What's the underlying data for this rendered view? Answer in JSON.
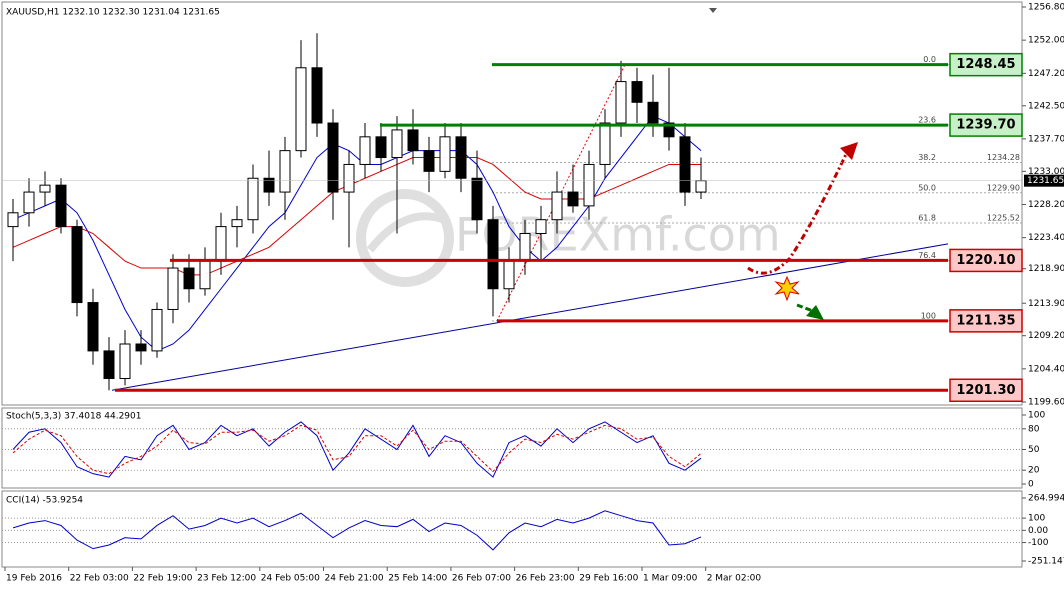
{
  "chart_data": [
    {
      "type": "candlestick",
      "title": "XAUUSD,H1  1232.10 1232.30 1231.04 1231.65",
      "watermark": "FOREXmf.com",
      "open": [
        1225,
        1227,
        1230,
        1231,
        1225,
        1214,
        1207,
        1203,
        1208,
        1207,
        1213,
        1219,
        1216,
        1220,
        1225,
        1226,
        1232,
        1230,
        1236,
        1248,
        1240,
        1230,
        1234,
        1238,
        1235,
        1239,
        1236,
        1233,
        1238,
        1232,
        1226,
        1216,
        1220,
        1224,
        1226,
        1230,
        1228,
        1234,
        1240,
        1246,
        1243,
        1240,
        1238,
        1230
      ],
      "high": [
        1229,
        1232,
        1233,
        1232,
        1226,
        1216,
        1209,
        1210,
        1210,
        1214,
        1221,
        1221,
        1222,
        1227,
        1228,
        1234,
        1236,
        1238,
        1252,
        1253,
        1242,
        1236,
        1240,
        1240,
        1241,
        1242,
        1238,
        1240,
        1240,
        1236,
        1228,
        1222,
        1226,
        1228,
        1233,
        1234,
        1236,
        1242,
        1249,
        1248,
        1247,
        1248,
        1240,
        1235
      ],
      "low": [
        1220,
        1225,
        1228,
        1224,
        1212,
        1205,
        1201.3,
        1202,
        1205,
        1206,
        1211,
        1214,
        1215,
        1218,
        1222,
        1224,
        1228,
        1226,
        1235,
        1238,
        1226,
        1222,
        1232,
        1233,
        1224,
        1234,
        1230,
        1232,
        1230,
        1224,
        1212,
        1214,
        1218,
        1220,
        1224,
        1227,
        1226,
        1232,
        1238,
        1240,
        1238,
        1236,
        1228,
        1229
      ],
      "close": [
        1227,
        1230,
        1231,
        1225,
        1214,
        1207,
        1203,
        1208,
        1207,
        1213,
        1219,
        1216,
        1220,
        1225,
        1226,
        1232,
        1230,
        1236,
        1248,
        1240,
        1230,
        1234,
        1238,
        1235,
        1239,
        1236,
        1233,
        1238,
        1232,
        1226,
        1216,
        1220,
        1224,
        1226,
        1230,
        1228,
        1234,
        1240,
        1246,
        1243,
        1240,
        1238,
        1230,
        1231.65
      ],
      "moving_averages": [
        {
          "color": "#0000cc",
          "values": [
            1226,
            1227,
            1228,
            1229,
            1227,
            1223,
            1218,
            1213,
            1209,
            1207,
            1208,
            1210,
            1213,
            1216,
            1219,
            1222,
            1225,
            1227,
            1231,
            1235,
            1237,
            1236,
            1234,
            1234,
            1235,
            1236,
            1236,
            1236,
            1236,
            1234,
            1230,
            1225,
            1222,
            1220,
            1222,
            1225,
            1228,
            1232,
            1235,
            1238,
            1241,
            1240,
            1238,
            1236
          ]
        },
        {
          "color": "#dd0000",
          "values": [
            1222,
            1223,
            1224,
            1225,
            1225,
            1224,
            1222,
            1220,
            1219,
            1219,
            1219,
            1218,
            1218,
            1219,
            1220,
            1221,
            1222,
            1224,
            1226,
            1228,
            1230,
            1231,
            1232,
            1233,
            1234,
            1235,
            1235,
            1235,
            1235,
            1235,
            1234,
            1232,
            1230,
            1229,
            1229,
            1229,
            1229,
            1230,
            1231,
            1232,
            1233,
            1234,
            1234,
            1234
          ]
        }
      ],
      "ylim": [
        1199.6,
        1256.8
      ],
      "yticks": [
        {
          "value": 1256.8,
          "label": "1256.80"
        },
        {
          "value": 1252,
          "label": "1252.00"
        },
        {
          "value": 1247.2,
          "label": "1247.20"
        },
        {
          "value": 1242.5,
          "label": "1242.50"
        },
        {
          "value": 1237.7,
          "label": "1237.70"
        },
        {
          "value": 1233,
          "label": "1233.00"
        },
        {
          "value": 1228.2,
          "label": "1228.20"
        },
        {
          "value": 1223.4,
          "label": "1223.40"
        },
        {
          "value": 1218.9,
          "label": "1218.90"
        },
        {
          "value": 1213.9,
          "label": "1213.90"
        },
        {
          "value": 1209.2,
          "label": "1209.20"
        },
        {
          "value": 1204.4,
          "label": "1204.40"
        },
        {
          "value": 1199.6,
          "label": "1199.60"
        }
      ],
      "current_price": 1231.65,
      "levels": [
        {
          "value": 1248.45,
          "label": "1248.45",
          "color": "#008000",
          "box_color": "#c8f0c8"
        },
        {
          "value": 1239.7,
          "label": "1239.70",
          "color": "#008000",
          "box_color": "#c8f0c8"
        },
        {
          "value": 1220.1,
          "label": "1220.10",
          "color": "#cc0000",
          "box_color": "#ffc8c8"
        },
        {
          "value": 1211.35,
          "label": "1211.35",
          "color": "#cc0000",
          "box_color": "#ffc8c8"
        },
        {
          "value": 1201.3,
          "label": "1201.30",
          "color": "#cc0000",
          "box_color": "#ffc8c8"
        }
      ],
      "fib": [
        {
          "label": "0.0",
          "value": 1248.45
        },
        {
          "label": "23.6",
          "value": 1239.7
        },
        {
          "label": "38.2",
          "value": 1234.28,
          "value_label": "1234.28"
        },
        {
          "label": "50.0",
          "value": 1229.9,
          "value_label": "1229.90"
        },
        {
          "label": "61.8",
          "value": 1225.52,
          "value_label": "1225.52"
        },
        {
          "label": "76.4",
          "value": 1220.1
        },
        {
          "label": "100",
          "value": 1211.35
        }
      ],
      "trendline": [
        1201.3,
        1222.5
      ],
      "time_labels": [
        "19 Feb 2016",
        "22 Feb 03:00",
        "22 Feb 19:00",
        "23 Feb 12:00",
        "24 Feb 05:00",
        "24 Feb 21:00",
        "25 Feb 14:00",
        "26 Feb 07:00",
        "26 Feb 23:00",
        "29 Feb 16:00",
        "1 Mar 09:00",
        "2 Mar 02:00"
      ]
    },
    {
      "type": "line",
      "title": "Stoch(5,3,3) 37.4018 44.2901",
      "series": [
        {
          "color": "#0000cc",
          "dash": false,
          "values": [
            50,
            75,
            80,
            60,
            25,
            15,
            10,
            40,
            35,
            70,
            85,
            50,
            60,
            85,
            70,
            80,
            55,
            75,
            90,
            70,
            20,
            45,
            80,
            65,
            50,
            85,
            40,
            70,
            60,
            30,
            10,
            60,
            70,
            55,
            80,
            60,
            80,
            90,
            75,
            60,
            70,
            30,
            20,
            37.4018
          ]
        },
        {
          "color": "#dd0000",
          "dash": true,
          "values": [
            45,
            65,
            78,
            70,
            40,
            20,
            15,
            30,
            40,
            55,
            78,
            60,
            58,
            75,
            75,
            78,
            62,
            70,
            85,
            78,
            35,
            40,
            70,
            70,
            55,
            78,
            50,
            62,
            62,
            40,
            18,
            45,
            65,
            60,
            72,
            65,
            75,
            85,
            80,
            65,
            68,
            40,
            25,
            44.2901
          ]
        }
      ],
      "ylim": [
        0,
        100
      ],
      "yticks": [
        100,
        80,
        50,
        20,
        0
      ]
    },
    {
      "type": "line",
      "title": "CCI(14) -53.9254",
      "series": [
        {
          "color": "#0000cc",
          "dash": false,
          "values": [
            20,
            60,
            80,
            40,
            -80,
            -150,
            -120,
            -60,
            -70,
            40,
            120,
            10,
            40,
            100,
            60,
            100,
            30,
            80,
            140,
            40,
            -60,
            20,
            80,
            40,
            30,
            90,
            -10,
            60,
            40,
            -40,
            -160,
            -20,
            60,
            30,
            90,
            60,
            100,
            160,
            120,
            80,
            60,
            -120,
            -110,
            -53.9254
          ]
        }
      ],
      "ylim": [
        -251.147,
        264.994
      ],
      "yticks": [
        264.994,
        100,
        {
          "value": 0,
          "label": "0.00"
        },
        -100,
        -251.147
      ]
    }
  ]
}
